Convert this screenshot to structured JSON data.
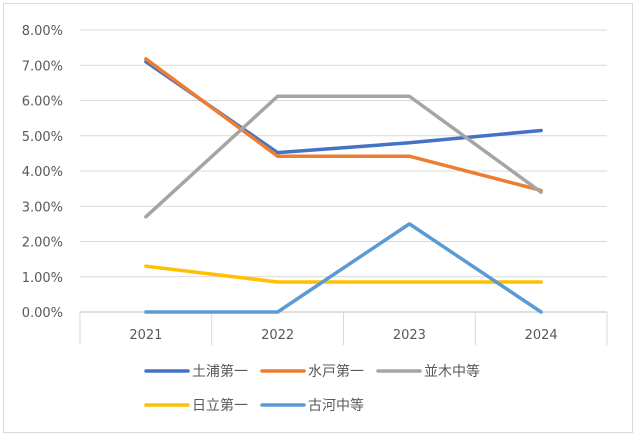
{
  "chart_data": {
    "type": "line",
    "categories": [
      "2021",
      "2022",
      "2023",
      "2024"
    ],
    "yticks": [
      "0.00%",
      "1.00%",
      "2.00%",
      "3.00%",
      "4.00%",
      "5.00%",
      "6.00%",
      "7.00%",
      "8.00%"
    ],
    "ylim": [
      0,
      8
    ],
    "grid": true,
    "legend_position": "bottom",
    "series": [
      {
        "name": "土浦第一",
        "color": "#4472c4",
        "values": [
          7.1,
          4.52,
          4.8,
          5.15
        ]
      },
      {
        "name": "水戸第一",
        "color": "#ed7d31",
        "values": [
          7.18,
          4.42,
          4.42,
          3.45
        ]
      },
      {
        "name": "並木中等",
        "color": "#a5a5a5",
        "values": [
          2.7,
          6.12,
          6.12,
          3.4
        ]
      },
      {
        "name": "日立第一",
        "color": "#ffc000",
        "values": [
          1.3,
          0.85,
          0.85,
          0.85
        ]
      },
      {
        "name": "古河中等",
        "color": "#5b9bd5",
        "values": [
          0.0,
          0.0,
          2.5,
          0.0
        ]
      }
    ]
  }
}
